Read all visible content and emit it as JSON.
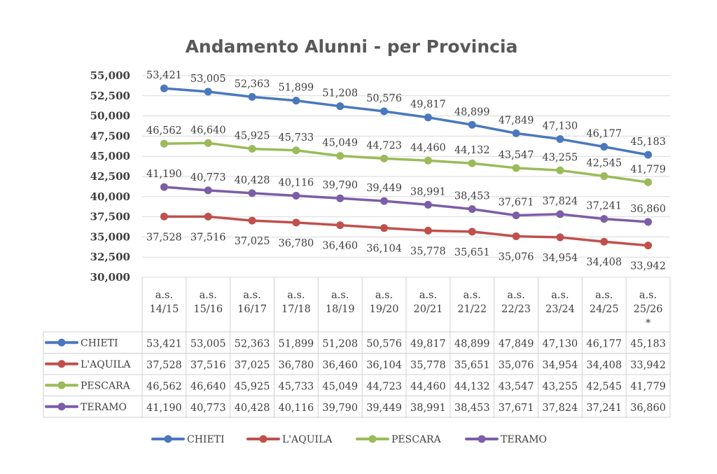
{
  "chart_data": {
    "type": "line",
    "title": "Andamento Alunni - per Provincia",
    "categories": [
      [
        "a.s.",
        "14/15"
      ],
      [
        "a.s.",
        "15/16"
      ],
      [
        "a.s.",
        "16/17"
      ],
      [
        "a.s.",
        "17/18"
      ],
      [
        "a.s.",
        "18/19"
      ],
      [
        "a.s.",
        "19/20"
      ],
      [
        "a.s.",
        "20/21"
      ],
      [
        "a.s.",
        "21/22"
      ],
      [
        "a.s.",
        "22/23"
      ],
      [
        "a.s.",
        "23/24"
      ],
      [
        "a.s.",
        "24/25"
      ],
      [
        "a.s.",
        "25/26",
        "*"
      ]
    ],
    "ylim": [
      30000,
      55000
    ],
    "yticks": [
      "30,000",
      "32,500",
      "35,000",
      "37,500",
      "40,000",
      "42,500",
      "45,000",
      "47,500",
      "50,000",
      "52,500",
      "55,000"
    ],
    "grid": true,
    "legend": "bottom",
    "data_table": true,
    "series": [
      {
        "name": "CHIETI",
        "color": "#4a78bf",
        "label_pos": "above",
        "values": [
          53421,
          53005,
          52363,
          51899,
          51208,
          50576,
          49817,
          48899,
          47849,
          47130,
          46177,
          45183
        ],
        "labels": [
          "53,421",
          "53,005",
          "52,363",
          "51,899",
          "51,208",
          "50,576",
          "49,817",
          "48,899",
          "47,849",
          "47,130",
          "46,177",
          "45,183"
        ]
      },
      {
        "name": "L'AQUILA",
        "color": "#c0504d",
        "label_pos": "below",
        "values": [
          37528,
          37516,
          37025,
          36780,
          36460,
          36104,
          35778,
          35651,
          35076,
          34954,
          34408,
          33942
        ],
        "labels": [
          "37,528",
          "37,516",
          "37,025",
          "36,780",
          "36,460",
          "36,104",
          "35,778",
          "35,651",
          "35,076",
          "34,954",
          "34,408",
          "33,942"
        ]
      },
      {
        "name": "PESCARA",
        "color": "#9bbb59",
        "label_pos": "above",
        "values": [
          46562,
          46640,
          45925,
          45733,
          45049,
          44723,
          44460,
          44132,
          43547,
          43255,
          42545,
          41779
        ],
        "labels": [
          "46,562",
          "46,640",
          "45,925",
          "45,733",
          "45,049",
          "44,723",
          "44,460",
          "44,132",
          "43,547",
          "43,255",
          "42,545",
          "41,779"
        ]
      },
      {
        "name": "TERAMO",
        "color": "#7b5ea7",
        "label_pos": "above",
        "values": [
          41190,
          40773,
          40428,
          40116,
          39790,
          39449,
          38991,
          38453,
          37671,
          37824,
          37241,
          36860
        ],
        "labels": [
          "41,190",
          "40,773",
          "40,428",
          "40,116",
          "39,790",
          "39,449",
          "38,991",
          "38,453",
          "37,671",
          "37,824",
          "37,241",
          "36,860"
        ]
      }
    ]
  }
}
